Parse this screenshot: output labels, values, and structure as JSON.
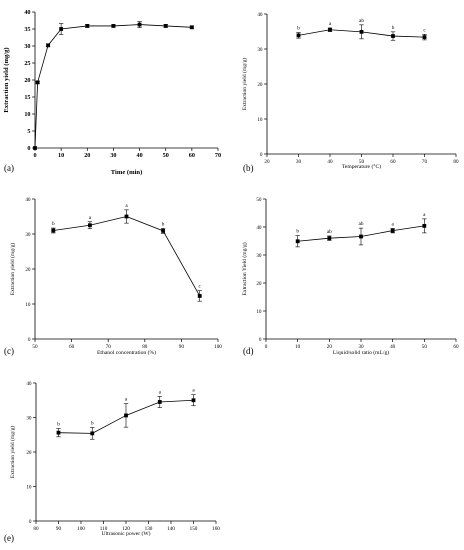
{
  "chart_data": [
    {
      "panel": "(a)",
      "type": "line",
      "xlabel": "Time (min)",
      "ylabel": "Extraction yield (mg/g)",
      "xlim": [
        0,
        70
      ],
      "xticks": [
        0,
        10,
        20,
        30,
        40,
        50,
        60,
        70
      ],
      "ylim": [
        0,
        40
      ],
      "yticks": [
        0,
        5,
        10,
        15,
        20,
        25,
        30,
        35,
        40
      ],
      "style": "bold",
      "x": [
        0,
        1,
        5,
        10,
        20,
        30,
        40,
        50,
        60
      ],
      "y": [
        0,
        19.3,
        30.2,
        35.0,
        35.9,
        35.9,
        36.3,
        35.9,
        35.5
      ],
      "err": [
        0,
        0.3,
        0.4,
        1.6,
        0.4,
        0.3,
        0.9,
        0.4,
        0.4
      ],
      "labels": []
    },
    {
      "panel": "(b)",
      "type": "line",
      "xlabel": "Temperature (°C)",
      "ylabel": "Extraction yield (mg/g)",
      "xlim": [
        20,
        80
      ],
      "xticks": [
        20,
        30,
        40,
        50,
        60,
        70,
        80
      ],
      "ylim": [
        0,
        40
      ],
      "yticks": [
        0,
        10,
        20,
        30,
        40
      ],
      "style": "normal",
      "x": [
        30,
        40,
        50,
        60,
        70
      ],
      "y": [
        33.9,
        35.5,
        34.9,
        33.7,
        33.4
      ],
      "err": [
        0.8,
        0.5,
        2.0,
        1.2,
        0.8
      ],
      "labels": [
        "b",
        "a",
        "ab",
        "b",
        "c"
      ]
    },
    {
      "panel": "(c)",
      "type": "line",
      "xlabel": "Ethanol concentration (%)",
      "ylabel": "Extraction yield (mg/g)",
      "xlim": [
        50,
        100
      ],
      "xticks": [
        50,
        60,
        70,
        80,
        90,
        100
      ],
      "ylim": [
        0,
        40
      ],
      "yticks": [
        0,
        10,
        20,
        30,
        40
      ],
      "style": "normal",
      "x": [
        55,
        65,
        75,
        85,
        95
      ],
      "y": [
        31.0,
        32.5,
        35.0,
        30.9,
        12.3
      ],
      "err": [
        0.7,
        1.0,
        1.9,
        0.7,
        1.5
      ],
      "labels": [
        "b",
        "a",
        "a",
        "b",
        "c"
      ]
    },
    {
      "panel": "(d)",
      "type": "line",
      "xlabel": "Liquid/solid ratio (mL/g)",
      "ylabel": "Extraction Yield (mg/g)",
      "xlim": [
        0,
        60
      ],
      "xticks": [
        0,
        10,
        20,
        30,
        40,
        50,
        60
      ],
      "ylim": [
        0,
        50
      ],
      "yticks": [
        0,
        10,
        20,
        30,
        40,
        50
      ],
      "style": "normal",
      "x": [
        10,
        20,
        30,
        40,
        50
      ],
      "y": [
        34.9,
        36.0,
        36.6,
        38.7,
        40.4
      ],
      "err": [
        2.0,
        0.8,
        3.0,
        0.8,
        2.5
      ],
      "labels": [
        "b",
        "ab",
        "ab",
        "a",
        "a"
      ]
    },
    {
      "panel": "(e)",
      "type": "line",
      "xlabel": "Ultrasonic power (W)",
      "ylabel": "Extraction yield (mg/g)",
      "xlim": [
        80,
        160
      ],
      "xticks": [
        80,
        90,
        100,
        110,
        120,
        130,
        140,
        150,
        160
      ],
      "ylim": [
        0,
        40
      ],
      "yticks": [
        0,
        10,
        20,
        30,
        40
      ],
      "style": "normal",
      "x": [
        90,
        105,
        120,
        135,
        150
      ],
      "y": [
        25.6,
        25.4,
        30.6,
        34.5,
        35.0
      ],
      "err": [
        1.2,
        1.7,
        3.4,
        1.6,
        1.6
      ],
      "labels": [
        "b",
        "b",
        "a",
        "a",
        "a"
      ]
    }
  ]
}
